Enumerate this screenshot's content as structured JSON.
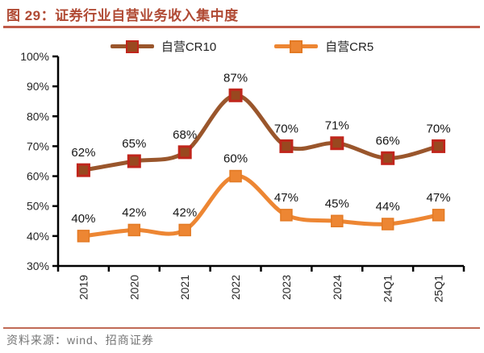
{
  "header": {
    "title": "图 29：证券行业自营业务收入集中度"
  },
  "footer": {
    "source": "资料来源：wind、招商证券"
  },
  "colors": {
    "title": "#b04a34",
    "title_rule": "#c05a48",
    "footer_rule": "#c06a55",
    "axis": "#000000",
    "tick_label": "#262626",
    "data_label": "#151515",
    "source_text": "#757575"
  },
  "chart_data": {
    "type": "line",
    "title": "证券行业自营业务收入集中度",
    "categories": [
      "2019",
      "2020",
      "2021",
      "2022",
      "2023",
      "2024",
      "24Q1",
      "25Q1"
    ],
    "series": [
      {
        "name": "自营CR10",
        "values": [
          62,
          65,
          68,
          87,
          70,
          71,
          66,
          70
        ],
        "line_color": "#9a562c",
        "marker_fill": "#99481f",
        "marker_stroke": "#c0261c",
        "marker_stroke_width": 3
      },
      {
        "name": "自营CR5",
        "values": [
          40,
          42,
          42,
          60,
          47,
          45,
          44,
          47
        ],
        "line_color": "#ed8633",
        "marker_fill": "#ed8633",
        "marker_stroke": "#e37a24",
        "marker_stroke_width": 1.5
      }
    ],
    "ylim": [
      30,
      100
    ],
    "ytick_step": 10,
    "ytick_labels": [
      "30%",
      "40%",
      "50%",
      "60%",
      "70%",
      "80%",
      "90%",
      "100%"
    ],
    "ylabel_format": "percent",
    "data_labels": true,
    "grid": false,
    "legend_position": "top",
    "x_label_rotation": -90
  }
}
